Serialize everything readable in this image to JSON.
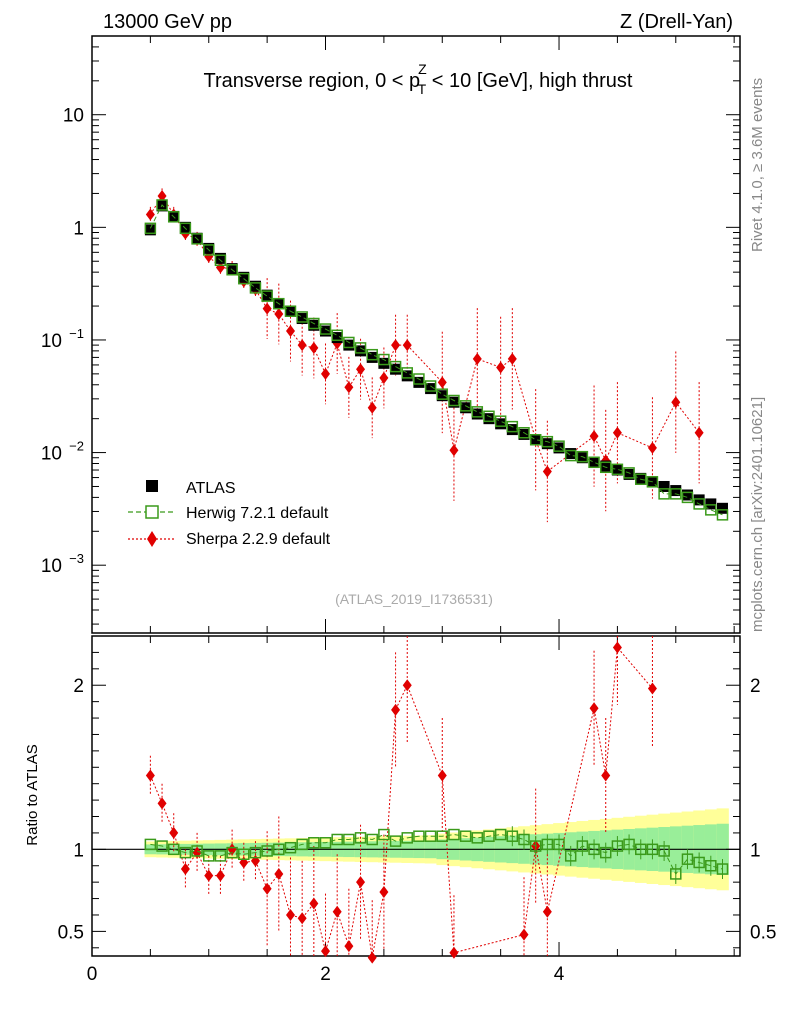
{
  "header": {
    "left": "13000 GeV pp",
    "right": "Z (Drell-Yan)",
    "side_top": "Rivet 4.1.0, ≥ 3.6M events",
    "side_bottom": "mcplots.cern.ch [arXiv:2401.10621]",
    "analysis_id": "(ATLAS_2019_I1736531)"
  },
  "chart_data": {
    "type": "scatter",
    "title": "Transverse region, 0 < pTZ < 10 [GeV], high thrust",
    "title_parts": {
      "pre": "Transverse region, 0 < p",
      "sup": "Z",
      "sub": "T",
      "post": " < 10 [GeV], high thrust"
    },
    "xlim": [
      0,
      5.55
    ],
    "ylim": [
      0.00025,
      50
    ],
    "yscale": "log",
    "xticks": [
      0,
      2,
      4
    ],
    "yticks": [
      {
        "v": 10,
        "label": "10"
      },
      {
        "v": 1,
        "label": "1"
      },
      {
        "v": 0.1,
        "label": "10",
        "exp": "−1"
      },
      {
        "v": 0.01,
        "label": "10",
        "exp": "−2"
      },
      {
        "v": 0.001,
        "label": "10",
        "exp": "−3"
      }
    ],
    "x": [
      0.5,
      0.6,
      0.7,
      0.8,
      0.9,
      1.0,
      1.1,
      1.2,
      1.3,
      1.4,
      1.5,
      1.6,
      1.7,
      1.8,
      1.9,
      2.0,
      2.1,
      2.2,
      2.3,
      2.4,
      2.5,
      2.6,
      2.7,
      2.8,
      2.9,
      3.0,
      3.1,
      3.2,
      3.3,
      3.4,
      3.5,
      3.6,
      3.7,
      3.8,
      3.9,
      4.0,
      4.1,
      4.2,
      4.3,
      4.4,
      4.5,
      4.6,
      4.7,
      4.8,
      4.9,
      5.0,
      5.1,
      5.2,
      5.3,
      5.4
    ],
    "series": [
      {
        "name": "ATLAS",
        "values": [
          0.95,
          1.55,
          1.25,
          1.0,
          0.8,
          0.65,
          0.53,
          0.43,
          0.36,
          0.3,
          0.25,
          0.21,
          0.18,
          0.155,
          0.135,
          0.12,
          0.105,
          0.09,
          0.08,
          0.07,
          0.062,
          0.055,
          0.048,
          0.042,
          0.037,
          0.032,
          0.028,
          0.025,
          0.022,
          0.02,
          0.018,
          0.016,
          0.0145,
          0.013,
          0.012,
          0.011,
          0.0098,
          0.009,
          0.0082,
          0.0076,
          0.007,
          0.0064,
          0.0059,
          0.0055,
          0.005,
          0.0046,
          0.0042,
          0.0038,
          0.0035,
          0.0032
        ]
      },
      {
        "name": "Herwig 7.2.1 default",
        "values": [
          0.98,
          1.58,
          1.24,
          0.98,
          0.79,
          0.63,
          0.51,
          0.42,
          0.35,
          0.29,
          0.245,
          0.21,
          0.18,
          0.16,
          0.14,
          0.125,
          0.11,
          0.095,
          0.085,
          0.074,
          0.067,
          0.058,
          0.051,
          0.045,
          0.039,
          0.033,
          0.029,
          0.026,
          0.023,
          0.021,
          0.019,
          0.017,
          0.015,
          0.013,
          0.0125,
          0.0114,
          0.0094,
          0.0092,
          0.0082,
          0.0074,
          0.0071,
          0.0066,
          0.0058,
          0.0055,
          0.0043,
          0.0043,
          0.004,
          0.0035,
          0.0031,
          0.0028
        ]
      },
      {
        "name": "Sherpa 2.2.9 default",
        "values": [
          1.3,
          1.9,
          1.3,
          0.88,
          0.78,
          0.55,
          0.44,
          0.43,
          0.33,
          0.28,
          0.19,
          0.17,
          0.12,
          0.09,
          0.085,
          0.05,
          0.093,
          0.038,
          0.055,
          0.025,
          0.046,
          0.09,
          0.09,
          null,
          null,
          0.042,
          0.0105,
          null,
          0.068,
          null,
          0.057,
          0.068,
          null,
          0.013,
          0.0068,
          null,
          null,
          null,
          0.014,
          0.0085,
          0.015,
          null,
          null,
          0.011,
          null,
          0.028,
          null,
          0.015,
          null,
          null
        ]
      }
    ],
    "legend": [
      "ATLAS",
      "Herwig 7.2.1 default",
      "Sherpa 2.2.9 default"
    ],
    "ratio": {
      "ylabel": "Ratio to ATLAS",
      "ylim": [
        0.35,
        2.3
      ],
      "yticks": [
        {
          "v": 0.5,
          "label": "0.5"
        },
        {
          "v": 1,
          "label": "1"
        },
        {
          "v": 2,
          "label": "2"
        }
      ],
      "herwig": [
        1.03,
        1.02,
        1.0,
        0.98,
        0.99,
        0.96,
        0.96,
        0.98,
        0.97,
        0.98,
        0.99,
        1.0,
        1.01,
        1.03,
        1.04,
        1.04,
        1.06,
        1.06,
        1.07,
        1.06,
        1.09,
        1.05,
        1.07,
        1.08,
        1.08,
        1.08,
        1.09,
        1.08,
        1.07,
        1.08,
        1.09,
        1.08,
        1.06,
        1.02,
        1.03,
        1.03,
        0.96,
        1.02,
        1.0,
        0.98,
        1.02,
        1.03,
        1.0,
        1.0,
        0.99,
        0.85,
        0.94,
        0.92,
        0.9,
        0.88
      ],
      "sherpa": [
        1.45,
        1.28,
        1.1,
        0.88,
        0.98,
        0.84,
        0.84,
        1.0,
        0.92,
        0.93,
        0.76,
        0.85,
        0.6,
        0.58,
        0.67,
        0.38,
        0.62,
        0.41,
        0.8,
        0.34,
        0.74,
        1.85,
        2.0,
        null,
        null,
        1.45,
        0.37,
        null,
        null,
        null,
        null,
        null,
        0.48,
        1.02,
        0.62,
        null,
        null,
        null,
        1.86,
        1.45,
        2.23,
        null,
        null,
        1.98,
        null,
        null,
        null,
        null,
        null,
        null
      ]
    }
  }
}
